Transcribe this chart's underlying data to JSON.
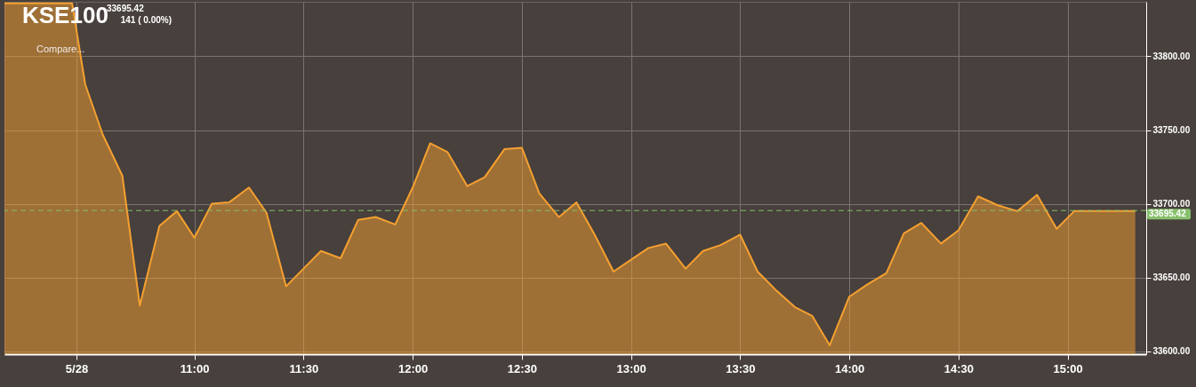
{
  "chart_data": {
    "type": "area",
    "title": "KSE100",
    "annotations": [
      "33695.42",
      "141 ( 0.00%)",
      "Compare..."
    ],
    "x": [
      10.13,
      10.44,
      10.5,
      10.58,
      10.67,
      10.75,
      10.84,
      10.92,
      11.0,
      11.08,
      11.16,
      11.25,
      11.33,
      11.42,
      11.5,
      11.58,
      11.67,
      11.75,
      11.83,
      11.92,
      12.0,
      12.08,
      12.16,
      12.25,
      12.33,
      12.42,
      12.5,
      12.58,
      12.67,
      12.75,
      12.83,
      12.92,
      13.0,
      13.08,
      13.16,
      13.25,
      13.33,
      13.41,
      13.5,
      13.58,
      13.66,
      13.75,
      13.83,
      13.91,
      14.0,
      14.08,
      14.17,
      14.25,
      14.33,
      14.42,
      14.5,
      14.59,
      14.68,
      14.77,
      14.86,
      14.95,
      15.03,
      15.31
    ],
    "series": [
      {
        "color": "#f5a030",
        "values": [
          33836,
          33836,
          33781,
          33747,
          33719,
          33631,
          33685,
          33695,
          33677,
          33700,
          33701,
          33711,
          33694,
          33644,
          33656,
          33668,
          33663,
          33689,
          33691,
          33686,
          33711,
          33741,
          33735,
          33712,
          33718,
          33737,
          33738,
          33707,
          33691,
          33701,
          33680,
          33654,
          33662,
          33670,
          33673,
          33656,
          33668,
          33672,
          33679,
          33654,
          33642,
          33630,
          33624,
          33604,
          33637,
          33645,
          33653,
          33680,
          33687,
          33673,
          33682,
          33705,
          33699,
          33695,
          33706,
          33683,
          33695,
          33695
        ]
      }
    ],
    "xlim": [
      10.13,
      15.36
    ],
    "xticks": [
      {
        "value": 10.46,
        "label": "5/28"
      },
      {
        "value": 11,
        "label": "11:00"
      },
      {
        "value": 11.5,
        "label": "11:30"
      },
      {
        "value": 12,
        "label": "12:00"
      },
      {
        "value": 12.5,
        "label": "12:30"
      },
      {
        "value": 13,
        "label": "13:00"
      },
      {
        "value": 13.5,
        "label": "13:30"
      },
      {
        "value": 14,
        "label": "14:00"
      },
      {
        "value": 14.5,
        "label": "14:30"
      },
      {
        "value": 15,
        "label": "15:00"
      }
    ],
    "ylim": [
      33598,
      33837
    ],
    "yticks": [
      {
        "value": 33600,
        "label": "33600.00"
      },
      {
        "value": 33650,
        "label": "33650.00"
      },
      {
        "value": 33700,
        "label": "33700.00"
      },
      {
        "value": 33750,
        "label": "33750.00"
      },
      {
        "value": 33800,
        "label": "33800.00"
      }
    ],
    "grid": true,
    "ref_lines": [
      {
        "axis": "y",
        "value": 33695.42,
        "label": "33695.42",
        "color": "#86c06c",
        "line_style": "dashed"
      }
    ]
  }
}
